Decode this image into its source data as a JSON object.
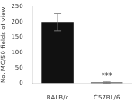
{
  "chart_data": {
    "type": "bar",
    "categories": [
      "BALB/c",
      "C57BL/6"
    ],
    "values": [
      200,
      3
    ],
    "errors": [
      28,
      2
    ],
    "colors": [
      "#111111",
      "#111111"
    ],
    "ylabel": "No. MC/50 fields of view",
    "ylim": [
      0,
      250
    ],
    "yticks": [
      0,
      50,
      100,
      150,
      200,
      250
    ],
    "grid": false,
    "annotations": [
      {
        "text": "***",
        "x": "C57BL/6",
        "y": 22
      }
    ]
  }
}
